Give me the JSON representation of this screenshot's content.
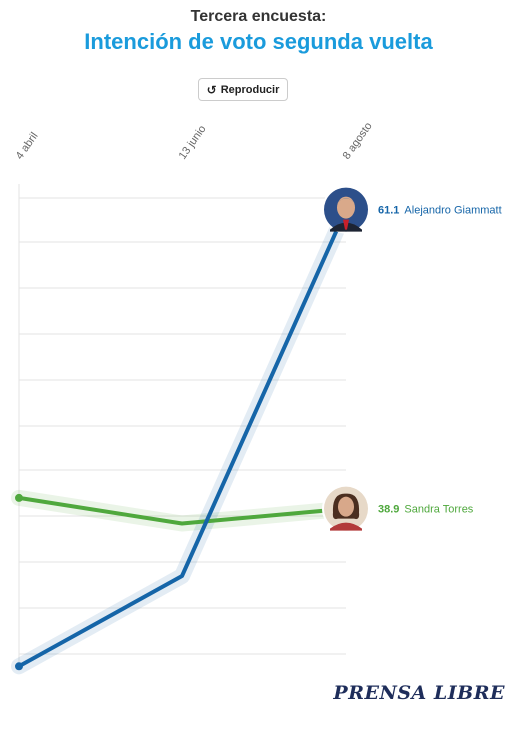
{
  "header": {
    "kicker": "Tercera encuesta:",
    "title": "Intención de voto segunda vuelta"
  },
  "controls": {
    "replay_label": "Reproducir"
  },
  "branding": {
    "logo_text": "PRENSA LIBRE"
  },
  "colors": {
    "accent": "#1a9bdc",
    "giammattei": "#1565a8",
    "torres": "#4fa83d",
    "grid": "#e0e0e0"
  },
  "chart_data": {
    "type": "line",
    "x": [
      "4 abril",
      "13 junio",
      "8 agosto"
    ],
    "ylim": [
      27,
      63
    ],
    "grid": true,
    "series": [
      {
        "name": "Alejandro Giammatt",
        "values": [
          27.2,
          33.9,
          61.1
        ],
        "label": "61.1",
        "color": "#1565a8",
        "avatar": "avatar-giammattei"
      },
      {
        "name": "Sandra Torres",
        "values": [
          39.7,
          37.8,
          38.9
        ],
        "label": "38.9",
        "color": "#4fa83d",
        "avatar": "avatar-torres"
      }
    ]
  }
}
